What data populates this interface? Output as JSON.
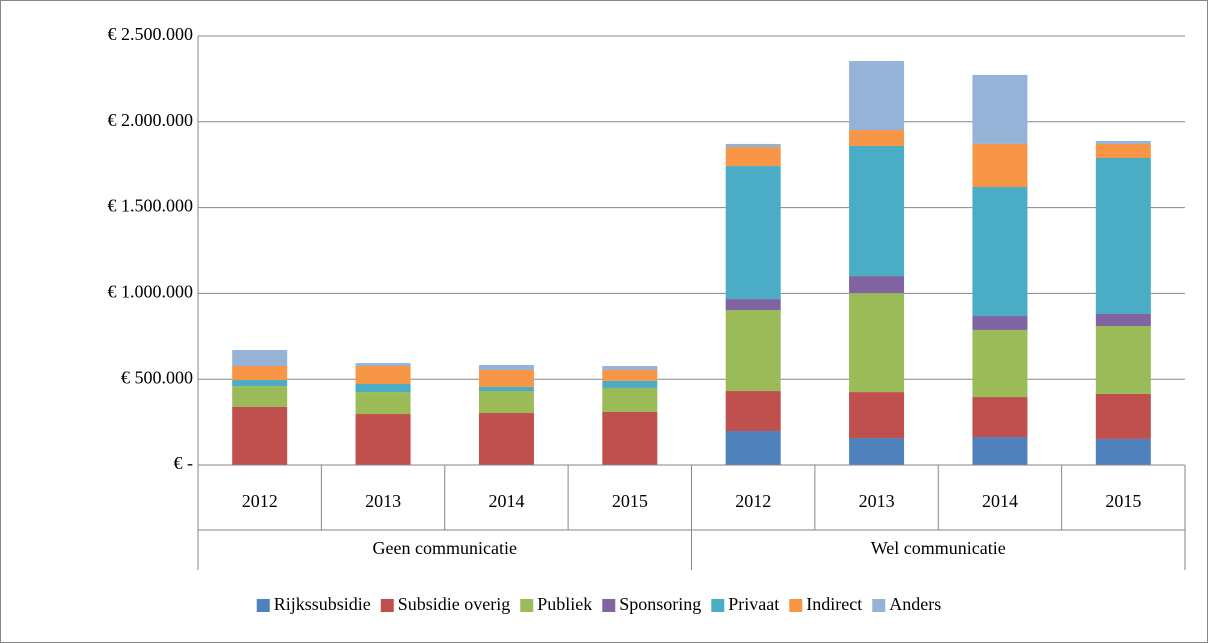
{
  "chart_data": {
    "type": "stacked_bar",
    "categories": [
      "2012",
      "2013",
      "2014",
      "2015",
      "2012",
      "2013",
      "2014",
      "2015"
    ],
    "groups": [
      "Geen communicatie",
      "Wel communicatie"
    ],
    "series": [
      {
        "name": "Rijkssubsidie",
        "color": "#4f81bd",
        "values": [
          0,
          0,
          0,
          0,
          198000,
          157000,
          163000,
          152000
        ]
      },
      {
        "name": "Subsidie overig",
        "color": "#c0504d",
        "values": [
          338000,
          297000,
          303000,
          309000,
          233000,
          268000,
          233000,
          262000
        ]
      },
      {
        "name": "Publiek",
        "color": "#9bbb59",
        "values": [
          122000,
          128000,
          128000,
          140000,
          472000,
          577000,
          391000,
          396000
        ]
      },
      {
        "name": "Sponsoring",
        "color": "#8064a2",
        "values": [
          0,
          0,
          0,
          0,
          64000,
          99000,
          81000,
          70000
        ]
      },
      {
        "name": "Privaat",
        "color": "#4bacc6",
        "values": [
          35000,
          47000,
          24000,
          41000,
          775000,
          758000,
          752000,
          909000
        ]
      },
      {
        "name": "Indirect",
        "color": "#f79646",
        "values": [
          82000,
          105000,
          99000,
          64000,
          111000,
          93000,
          251000,
          82000
        ]
      },
      {
        "name": "Anders",
        "color": "#95b3d7",
        "values": [
          93000,
          17000,
          29000,
          23000,
          18000,
          402000,
          402000,
          17000
        ]
      }
    ],
    "ylim": [
      0,
      2500000
    ],
    "yticks": [
      {
        "value": 0,
        "label": "€ -"
      },
      {
        "value": 500000,
        "label": "€ 500.000"
      },
      {
        "value": 1000000,
        "label": "€ 1.000.000"
      },
      {
        "value": 1500000,
        "label": "€ 1.500.000"
      },
      {
        "value": 2000000,
        "label": "€ 2.000.000"
      },
      {
        "value": 2500000,
        "label": "€ 2.500.000"
      }
    ],
    "grid": true,
    "legend": "bottom"
  }
}
